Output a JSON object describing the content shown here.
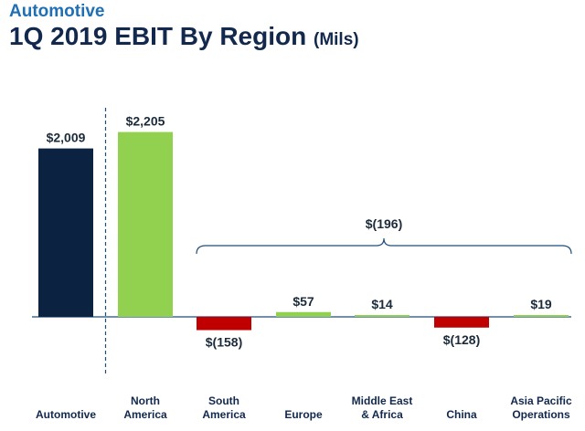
{
  "header": {
    "subtitle": "Automotive",
    "title": "1Q 2019 EBIT By Region",
    "unit": "(Mils)"
  },
  "chart_data": {
    "type": "bar",
    "categories": [
      [
        "Automotive"
      ],
      [
        "North",
        "America"
      ],
      [
        "South",
        "America"
      ],
      [
        "Europe"
      ],
      [
        "Middle East",
        "& Africa"
      ],
      [
        "China"
      ],
      [
        "Asia Pacific",
        "Operations"
      ]
    ],
    "values": [
      2009,
      2205,
      -158,
      57,
      14,
      -128,
      19
    ],
    "value_labels": [
      "$2,009",
      "$2,205",
      "$(158)",
      "$57",
      "$14",
      "$(128)",
      "$19"
    ],
    "colors": [
      "#0b2341",
      "#92d050",
      "#c00000",
      "#92d050",
      "#92d050",
      "#c00000",
      "#92d050"
    ],
    "bracket": {
      "label": "$(196)",
      "from_index": 2,
      "to_index": 6
    },
    "divider_after_index": 0,
    "colors_legend": {
      "positive": "#92d050",
      "negative": "#c00000",
      "total": "#0b2341"
    }
  }
}
